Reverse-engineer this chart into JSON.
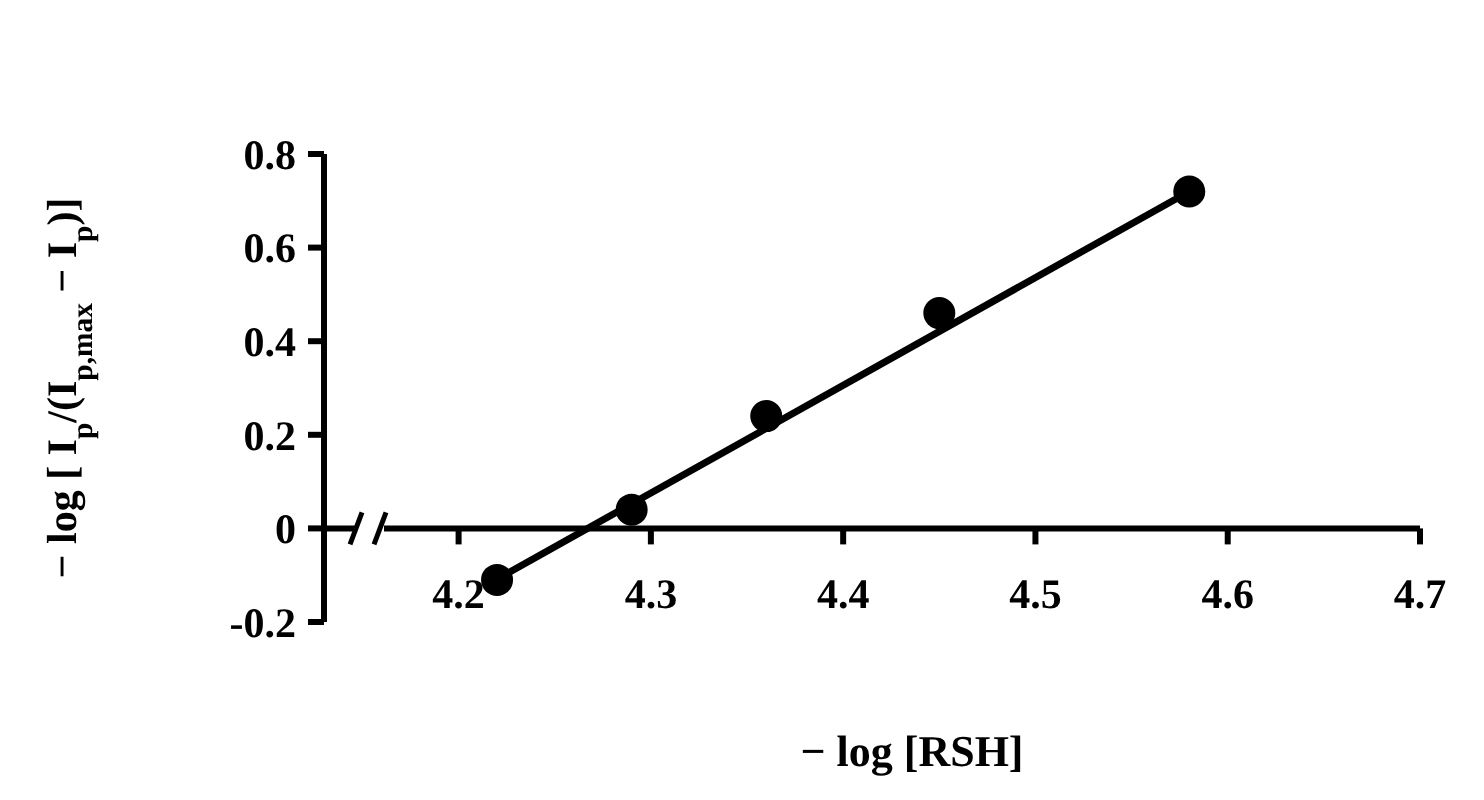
{
  "chart_data": {
    "type": "scatter",
    "xlabel": "− log [RSH]",
    "ylabel": "− log [ I$_{p}$/(I$_{p,max}$ − I$_{p}$)]",
    "xlim": [
      4.13,
      4.7
    ],
    "xticks": [
      4.2,
      4.3,
      4.4,
      4.5,
      4.6,
      4.7
    ],
    "ylim": [
      -0.2,
      0.8
    ],
    "yticks": [
      -0.2,
      0,
      0.2,
      0.4,
      0.6,
      0.8
    ],
    "grid": false,
    "series": [
      {
        "type": "scatter",
        "color": "#000000",
        "marker": "circle",
        "x": [
          4.22,
          4.29,
          4.36,
          4.45,
          4.58
        ],
        "values": [
          -0.11,
          0.04,
          0.24,
          0.46,
          0.72
        ]
      },
      {
        "type": "line",
        "color": "#000000",
        "marker": "none",
        "line_style": "solid",
        "x": [
          4.215,
          4.58
        ],
        "values": [
          -0.12,
          0.72
        ]
      }
    ]
  }
}
